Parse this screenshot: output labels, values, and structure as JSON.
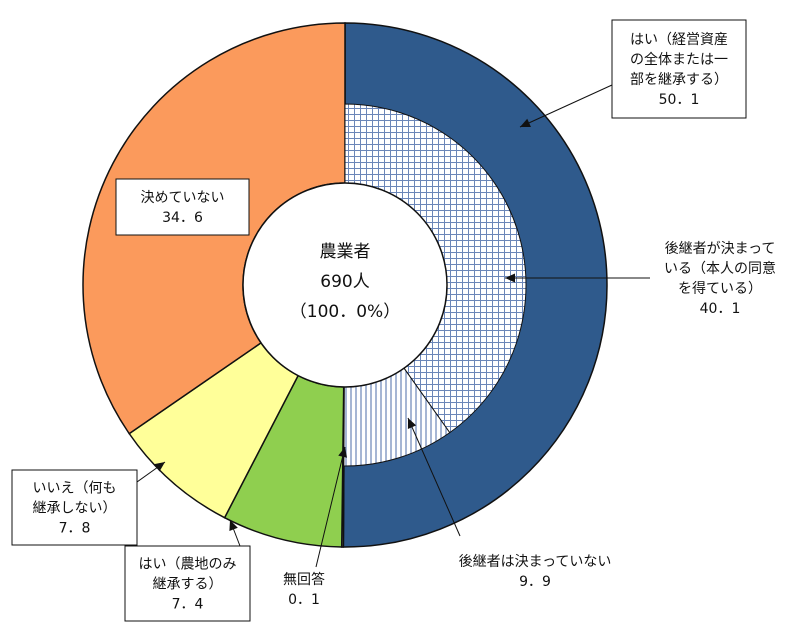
{
  "chart_data": {
    "type": "pie",
    "center": {
      "line1": "農業者",
      "line2": "690人",
      "line3": "（100．0%）"
    },
    "outer_ring": [
      {
        "label_lines": [
          "はい（経営資産",
          "の全体または一",
          "部を継承する）"
        ],
        "value_text": "50．1",
        "value": 50.1,
        "color": "#2f5a8c"
      },
      {
        "label_lines": [
          "無回答"
        ],
        "value_text": "0．1",
        "value": 0.1,
        "color": "#d9d9d9"
      },
      {
        "label_lines": [
          "はい（農地のみ",
          "継承する）"
        ],
        "value_text": "7．4",
        "value": 7.4,
        "color": "#8fcf4f"
      },
      {
        "label_lines": [
          "いいえ（何も",
          "継承しない）"
        ],
        "value_text": "7．8",
        "value": 7.8,
        "color": "#ffff99"
      },
      {
        "label_lines": [
          "決めていない"
        ],
        "value_text": "34．6",
        "value": 34.6,
        "color": "#fb9a5c"
      }
    ],
    "inner_ring": [
      {
        "label_lines": [
          "後継者が決まって",
          "いる（本人の同意",
          "を得ている）"
        ],
        "value_text": "40．1",
        "value": 40.1,
        "pattern": "grid"
      },
      {
        "label_lines": [
          "後継者は決まっていない"
        ],
        "value_text": "9．9",
        "value": 9.9,
        "pattern": "vlines"
      }
    ],
    "colors": {
      "outline": "#111111",
      "inner_pattern": "#6b86b8",
      "inner_bg": "#ffffff"
    }
  }
}
